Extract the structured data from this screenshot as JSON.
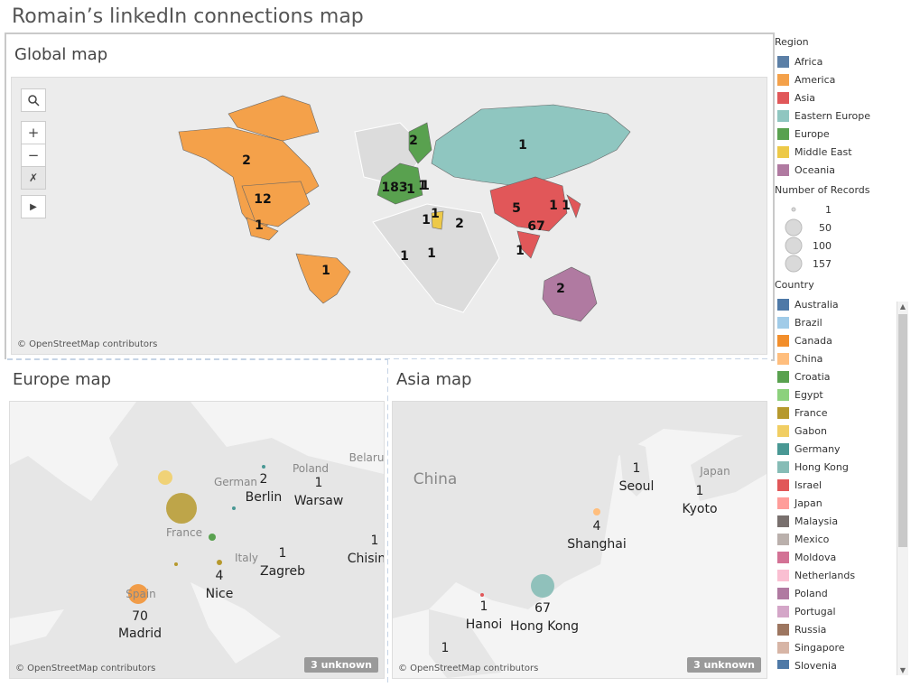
{
  "title": "Romain’s linkedIn connections map",
  "global": {
    "title": "Global map",
    "credit": "© OpenStreetMap contributors",
    "numbers": [
      "2",
      "12",
      "1",
      "1",
      "2",
      "1",
      "183",
      "1",
      "1",
      "1",
      "1",
      "2",
      "1",
      "1",
      "5",
      "67",
      "1",
      "1",
      "1",
      "2",
      "1"
    ]
  },
  "europe": {
    "title": "Europe map",
    "credit": "© OpenStreetMap contributors",
    "unknown": "3 unknown",
    "cities": [
      {
        "num": "2",
        "name": "Berlin"
      },
      {
        "num": "1",
        "name": "Warsaw"
      },
      {
        "num": "1",
        "name": "Zagreb"
      },
      {
        "num": "1",
        "name": "Chisin"
      },
      {
        "num": "4",
        "name": "Nice"
      },
      {
        "num": "70",
        "name": "Madrid"
      }
    ],
    "ghosts": [
      "Poland",
      "Belaru",
      "German",
      "France",
      "Italy",
      "Spain"
    ]
  },
  "asia": {
    "title": "Asia map",
    "credit": "© OpenStreetMap contributors",
    "unknown": "3 unknown",
    "cities": [
      {
        "num": "1",
        "name": "Seoul"
      },
      {
        "num": "1",
        "name": "Kyoto"
      },
      {
        "num": "4",
        "name": "Shanghai"
      },
      {
        "num": "67",
        "name": "Hong Kong"
      },
      {
        "num": "1",
        "name": "Hanoi"
      },
      {
        "num": "1",
        "name": ""
      }
    ],
    "ghosts": [
      "China",
      "Japan"
    ]
  },
  "legend": {
    "region_title": "Region",
    "regions": [
      {
        "label": "Africa",
        "color": "#5b7fa6"
      },
      {
        "label": "America",
        "color": "#f4a14a"
      },
      {
        "label": "Asia",
        "color": "#e15759"
      },
      {
        "label": "Eastern Europe",
        "color": "#8fc6c0"
      },
      {
        "label": "Europe",
        "color": "#59a14f"
      },
      {
        "label": "Middle East",
        "color": "#edc948"
      },
      {
        "label": "Oceania",
        "color": "#b07aa1"
      }
    ],
    "size_title": "Number of Records",
    "sizes": [
      "1",
      "50",
      "100",
      "157"
    ],
    "country_title": "Country",
    "countries": [
      {
        "label": "Australia",
        "color": "#4e79a7"
      },
      {
        "label": "Brazil",
        "color": "#a0cbe8"
      },
      {
        "label": "Canada",
        "color": "#f28e2b"
      },
      {
        "label": "China",
        "color": "#ffbe7d"
      },
      {
        "label": "Croatia",
        "color": "#59a14f"
      },
      {
        "label": "Egypt",
        "color": "#8cd17d"
      },
      {
        "label": "France",
        "color": "#b6992d"
      },
      {
        "label": "Gabon",
        "color": "#f1ce63"
      },
      {
        "label": "Germany",
        "color": "#499894"
      },
      {
        "label": "Hong Kong",
        "color": "#86bcb6"
      },
      {
        "label": "Israel",
        "color": "#e15759"
      },
      {
        "label": "Japan",
        "color": "#ff9d9a"
      },
      {
        "label": "Malaysia",
        "color": "#79706e"
      },
      {
        "label": "Mexico",
        "color": "#bab0ac"
      },
      {
        "label": "Moldova",
        "color": "#d37295"
      },
      {
        "label": "Netherlands",
        "color": "#fabfd2"
      },
      {
        "label": "Poland",
        "color": "#b07aa1"
      },
      {
        "label": "Portugal",
        "color": "#d4a6c8"
      },
      {
        "label": "Russia",
        "color": "#9d7660"
      },
      {
        "label": "Singapore",
        "color": "#d7b5a6"
      },
      {
        "label": "Slovenia",
        "color": "#4e79a7"
      }
    ]
  }
}
